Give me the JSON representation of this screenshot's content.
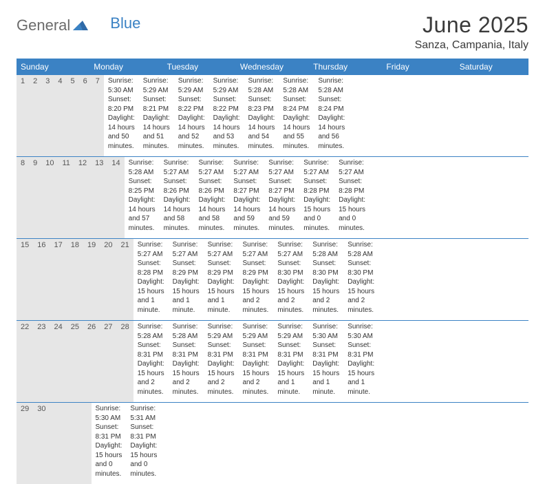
{
  "brand": {
    "part1": "General",
    "part2": "Blue"
  },
  "title": "June 2025",
  "location": "Sanza, Campania, Italy",
  "colors": {
    "header_bg": "#3b82c4",
    "header_text": "#ffffff",
    "daynum_bg": "#e6e6e6",
    "border": "#3b82c4",
    "text": "#333333",
    "background": "#ffffff"
  },
  "day_names": [
    "Sunday",
    "Monday",
    "Tuesday",
    "Wednesday",
    "Thursday",
    "Friday",
    "Saturday"
  ],
  "weeks": [
    {
      "nums": [
        "1",
        "2",
        "3",
        "4",
        "5",
        "6",
        "7"
      ],
      "cells": [
        {
          "sunrise": "Sunrise: 5:30 AM",
          "sunset": "Sunset: 8:20 PM",
          "day1": "Daylight: 14 hours",
          "day2": "and 50 minutes."
        },
        {
          "sunrise": "Sunrise: 5:29 AM",
          "sunset": "Sunset: 8:21 PM",
          "day1": "Daylight: 14 hours",
          "day2": "and 51 minutes."
        },
        {
          "sunrise": "Sunrise: 5:29 AM",
          "sunset": "Sunset: 8:22 PM",
          "day1": "Daylight: 14 hours",
          "day2": "and 52 minutes."
        },
        {
          "sunrise": "Sunrise: 5:29 AM",
          "sunset": "Sunset: 8:22 PM",
          "day1": "Daylight: 14 hours",
          "day2": "and 53 minutes."
        },
        {
          "sunrise": "Sunrise: 5:28 AM",
          "sunset": "Sunset: 8:23 PM",
          "day1": "Daylight: 14 hours",
          "day2": "and 54 minutes."
        },
        {
          "sunrise": "Sunrise: 5:28 AM",
          "sunset": "Sunset: 8:24 PM",
          "day1": "Daylight: 14 hours",
          "day2": "and 55 minutes."
        },
        {
          "sunrise": "Sunrise: 5:28 AM",
          "sunset": "Sunset: 8:24 PM",
          "day1": "Daylight: 14 hours",
          "day2": "and 56 minutes."
        }
      ]
    },
    {
      "nums": [
        "8",
        "9",
        "10",
        "11",
        "12",
        "13",
        "14"
      ],
      "cells": [
        {
          "sunrise": "Sunrise: 5:28 AM",
          "sunset": "Sunset: 8:25 PM",
          "day1": "Daylight: 14 hours",
          "day2": "and 57 minutes."
        },
        {
          "sunrise": "Sunrise: 5:27 AM",
          "sunset": "Sunset: 8:26 PM",
          "day1": "Daylight: 14 hours",
          "day2": "and 58 minutes."
        },
        {
          "sunrise": "Sunrise: 5:27 AM",
          "sunset": "Sunset: 8:26 PM",
          "day1": "Daylight: 14 hours",
          "day2": "and 58 minutes."
        },
        {
          "sunrise": "Sunrise: 5:27 AM",
          "sunset": "Sunset: 8:27 PM",
          "day1": "Daylight: 14 hours",
          "day2": "and 59 minutes."
        },
        {
          "sunrise": "Sunrise: 5:27 AM",
          "sunset": "Sunset: 8:27 PM",
          "day1": "Daylight: 14 hours",
          "day2": "and 59 minutes."
        },
        {
          "sunrise": "Sunrise: 5:27 AM",
          "sunset": "Sunset: 8:28 PM",
          "day1": "Daylight: 15 hours",
          "day2": "and 0 minutes."
        },
        {
          "sunrise": "Sunrise: 5:27 AM",
          "sunset": "Sunset: 8:28 PM",
          "day1": "Daylight: 15 hours",
          "day2": "and 0 minutes."
        }
      ]
    },
    {
      "nums": [
        "15",
        "16",
        "17",
        "18",
        "19",
        "20",
        "21"
      ],
      "cells": [
        {
          "sunrise": "Sunrise: 5:27 AM",
          "sunset": "Sunset: 8:28 PM",
          "day1": "Daylight: 15 hours",
          "day2": "and 1 minute."
        },
        {
          "sunrise": "Sunrise: 5:27 AM",
          "sunset": "Sunset: 8:29 PM",
          "day1": "Daylight: 15 hours",
          "day2": "and 1 minute."
        },
        {
          "sunrise": "Sunrise: 5:27 AM",
          "sunset": "Sunset: 8:29 PM",
          "day1": "Daylight: 15 hours",
          "day2": "and 1 minute."
        },
        {
          "sunrise": "Sunrise: 5:27 AM",
          "sunset": "Sunset: 8:29 PM",
          "day1": "Daylight: 15 hours",
          "day2": "and 2 minutes."
        },
        {
          "sunrise": "Sunrise: 5:27 AM",
          "sunset": "Sunset: 8:30 PM",
          "day1": "Daylight: 15 hours",
          "day2": "and 2 minutes."
        },
        {
          "sunrise": "Sunrise: 5:28 AM",
          "sunset": "Sunset: 8:30 PM",
          "day1": "Daylight: 15 hours",
          "day2": "and 2 minutes."
        },
        {
          "sunrise": "Sunrise: 5:28 AM",
          "sunset": "Sunset: 8:30 PM",
          "day1": "Daylight: 15 hours",
          "day2": "and 2 minutes."
        }
      ]
    },
    {
      "nums": [
        "22",
        "23",
        "24",
        "25",
        "26",
        "27",
        "28"
      ],
      "cells": [
        {
          "sunrise": "Sunrise: 5:28 AM",
          "sunset": "Sunset: 8:31 PM",
          "day1": "Daylight: 15 hours",
          "day2": "and 2 minutes."
        },
        {
          "sunrise": "Sunrise: 5:28 AM",
          "sunset": "Sunset: 8:31 PM",
          "day1": "Daylight: 15 hours",
          "day2": "and 2 minutes."
        },
        {
          "sunrise": "Sunrise: 5:29 AM",
          "sunset": "Sunset: 8:31 PM",
          "day1": "Daylight: 15 hours",
          "day2": "and 2 minutes."
        },
        {
          "sunrise": "Sunrise: 5:29 AM",
          "sunset": "Sunset: 8:31 PM",
          "day1": "Daylight: 15 hours",
          "day2": "and 2 minutes."
        },
        {
          "sunrise": "Sunrise: 5:29 AM",
          "sunset": "Sunset: 8:31 PM",
          "day1": "Daylight: 15 hours",
          "day2": "and 1 minute."
        },
        {
          "sunrise": "Sunrise: 5:30 AM",
          "sunset": "Sunset: 8:31 PM",
          "day1": "Daylight: 15 hours",
          "day2": "and 1 minute."
        },
        {
          "sunrise": "Sunrise: 5:30 AM",
          "sunset": "Sunset: 8:31 PM",
          "day1": "Daylight: 15 hours",
          "day2": "and 1 minute."
        }
      ]
    },
    {
      "nums": [
        "29",
        "30",
        "",
        "",
        "",
        "",
        ""
      ],
      "cells": [
        {
          "sunrise": "Sunrise: 5:30 AM",
          "sunset": "Sunset: 8:31 PM",
          "day1": "Daylight: 15 hours",
          "day2": "and 0 minutes."
        },
        {
          "sunrise": "Sunrise: 5:31 AM",
          "sunset": "Sunset: 8:31 PM",
          "day1": "Daylight: 15 hours",
          "day2": "and 0 minutes."
        },
        null,
        null,
        null,
        null,
        null
      ]
    }
  ]
}
